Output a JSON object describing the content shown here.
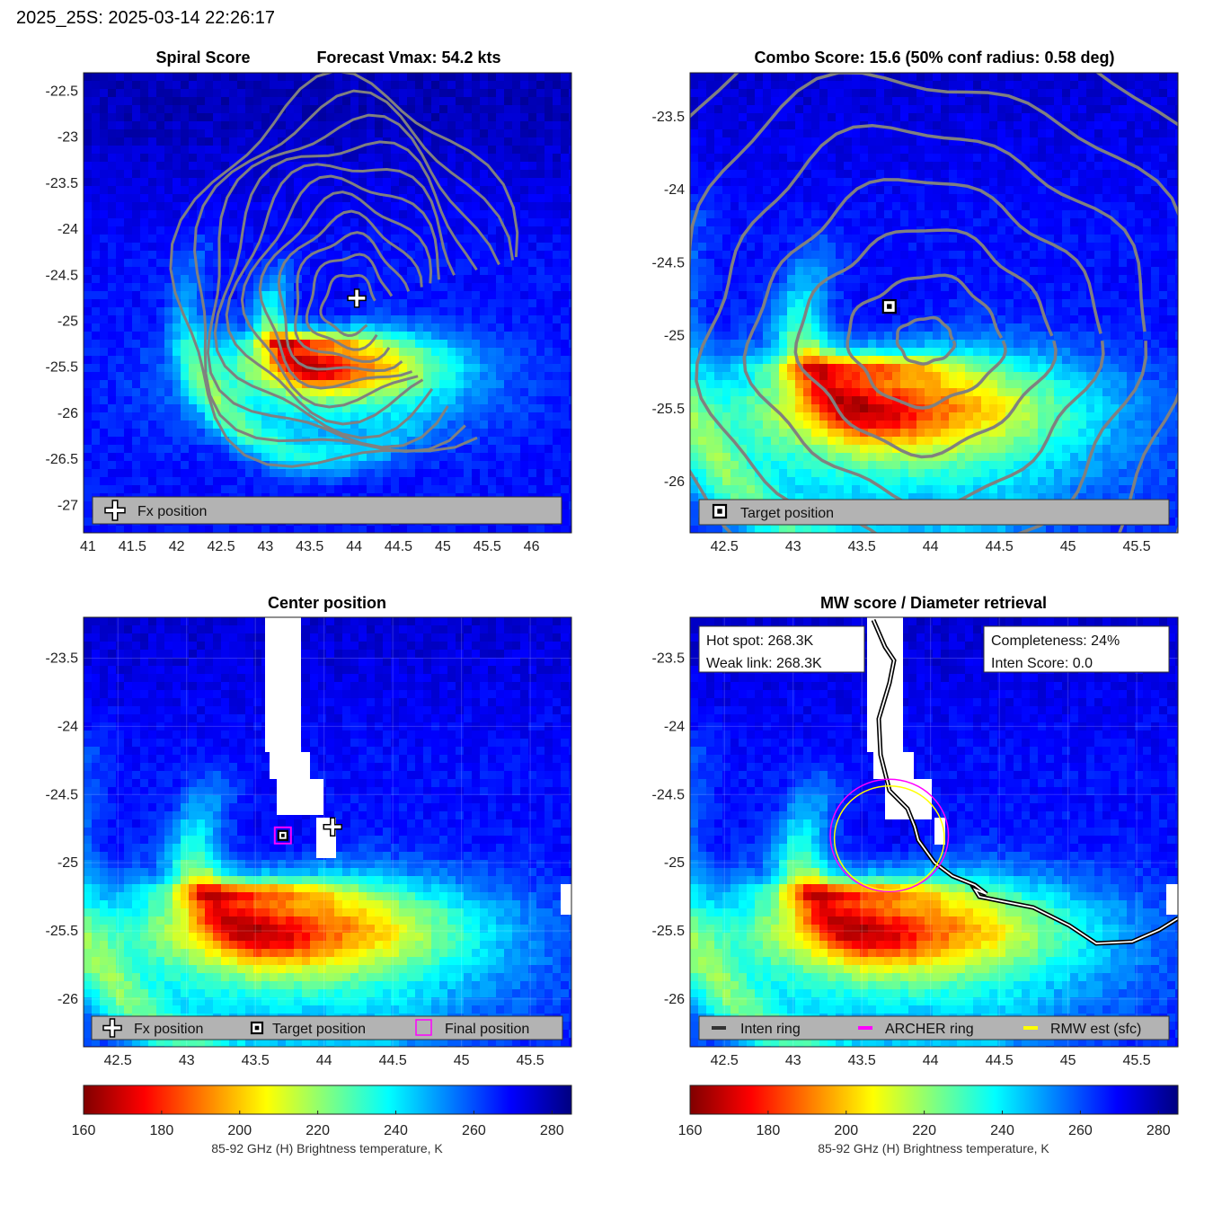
{
  "header": {
    "title": "2025_25S: 2025-03-14 22:26:17"
  },
  "colors": {
    "contour": "#808080",
    "inten_ring": "#333333",
    "archer_ring": "#ff00ff",
    "rmw_ring": "#ffff00",
    "legend_bg": "#b3b3b3"
  },
  "colormap": [
    "#800000",
    "#ff0000",
    "#ff8000",
    "#ffff00",
    "#80ff80",
    "#00ffff",
    "#0080ff",
    "#0000ff",
    "#000080"
  ],
  "chart_data": [
    {
      "type": "heatmap",
      "title_left": "Spiral Score",
      "title_right": "Forecast Vmax: 54.2 kts",
      "xlim": [
        40.95,
        46.45
      ],
      "ylim": [
        -27.3,
        -22.3
      ],
      "xticks": [
        41,
        41.5,
        42,
        42.5,
        43,
        43.5,
        44,
        44.5,
        45,
        45.5,
        46
      ],
      "xtick_labels": [
        "41",
        "41.5",
        "42",
        "42.5",
        "43",
        "43.5",
        "44",
        "44.5",
        "45",
        "45.5",
        "46"
      ],
      "yticks": [
        -22.5,
        -23,
        -23.5,
        -24,
        -24.5,
        -25,
        -25.5,
        -26,
        -26.5,
        -27
      ],
      "ytick_labels": [
        "-22.5",
        "-23",
        "-23.5",
        "-24",
        "-24.5",
        "-25",
        "-25.5",
        "-26",
        "-26.5",
        "-27"
      ],
      "markers": [
        {
          "kind": "plus",
          "x": 44.03,
          "y": -24.75,
          "label": "Fx position"
        }
      ],
      "legend": [
        "Fx position"
      ],
      "legend_location": "bottom",
      "contours": "spiral",
      "center": [
        43.95,
        -25.2
      ]
    },
    {
      "type": "heatmap",
      "title": "Combo Score: 15.6  (50% conf radius: 0.58 deg)",
      "xlim": [
        42.25,
        45.8
      ],
      "ylim": [
        -26.35,
        -23.2
      ],
      "xticks": [
        42.5,
        43,
        43.5,
        44,
        44.5,
        45,
        45.5
      ],
      "xtick_labels": [
        "42.5",
        "43",
        "43.5",
        "44",
        "44.5",
        "45",
        "45.5"
      ],
      "yticks": [
        -23.5,
        -24,
        -24.5,
        -25,
        -25.5,
        -26
      ],
      "ytick_labels": [
        "-23.5",
        "-24",
        "-24.5",
        "-25",
        "-25.5",
        "-26"
      ],
      "markers": [
        {
          "kind": "square",
          "x": 43.7,
          "y": -24.8,
          "label": "Target position"
        }
      ],
      "legend": [
        "Target position"
      ],
      "legend_location": "bottom",
      "contours": "combo",
      "center": [
        43.7,
        -24.85
      ]
    },
    {
      "type": "heatmap",
      "title": "Center position",
      "xlim": [
        42.25,
        45.8
      ],
      "ylim": [
        -26.35,
        -23.2
      ],
      "xticks": [
        42.5,
        43,
        43.5,
        44,
        44.5,
        45,
        45.5
      ],
      "xtick_labels": [
        "42.5",
        "43",
        "43.5",
        "44",
        "44.5",
        "45",
        "45.5"
      ],
      "yticks": [
        -23.5,
        -24,
        -24.5,
        -25,
        -25.5,
        -26
      ],
      "ytick_labels": [
        "-23.5",
        "-24",
        "-24.5",
        "-25",
        "-25.5",
        "-26"
      ],
      "markers": [
        {
          "kind": "plus",
          "x": 44.03,
          "y": -24.75,
          "label": "Fx position"
        },
        {
          "kind": "square",
          "x": 43.7,
          "y": -24.8,
          "label": "Target position"
        },
        {
          "kind": "magenta-square",
          "x": 43.7,
          "y": -24.8,
          "label": "Final position"
        }
      ],
      "legend": [
        "Fx position",
        "Target position",
        "Final position"
      ],
      "legend_location": "bottom",
      "grid": true
    },
    {
      "type": "heatmap",
      "title": "MW score / Diameter retrieval",
      "xlim": [
        42.25,
        45.8
      ],
      "ylim": [
        -26.35,
        -23.2
      ],
      "xticks": [
        42.5,
        43,
        43.5,
        44,
        44.5,
        45,
        45.5
      ],
      "xtick_labels": [
        "42.5",
        "43",
        "43.5",
        "44",
        "44.5",
        "45",
        "45.5"
      ],
      "yticks": [
        -23.5,
        -24,
        -24.5,
        -25,
        -25.5,
        -26
      ],
      "ytick_labels": [
        "-23.5",
        "-24",
        "-24.5",
        "-25",
        "-25.5",
        "-26"
      ],
      "info_left": [
        "Hot spot: 268.3K",
        "Weak link: 268.3K"
      ],
      "info_right": [
        "Completeness: 24%",
        "Inten Score: 0.0"
      ],
      "rings": [
        {
          "name": "Inten ring",
          "color": "#333333"
        },
        {
          "name": "ARCHER ring",
          "color": "#ff00ff",
          "x": 43.7,
          "y": -24.8,
          "r": 0.43
        },
        {
          "name": "RMW est (sfc)",
          "color": "#ffff00",
          "x": 43.7,
          "y": -24.82,
          "r": 0.4
        }
      ],
      "legend": [
        "Inten ring",
        "ARCHER ring",
        "RMW est (sfc)"
      ],
      "legend_location": "bottom",
      "grid": true
    }
  ],
  "colorbars": [
    {
      "range": [
        160,
        285
      ],
      "ticks": [
        160,
        180,
        200,
        220,
        240,
        260,
        280
      ],
      "tick_labels": [
        "160",
        "180",
        "200",
        "220",
        "240",
        "260",
        "280"
      ],
      "label": "85-92 GHz (H) Brightness temperature, K"
    },
    {
      "range": [
        160,
        285
      ],
      "ticks": [
        160,
        180,
        200,
        220,
        240,
        260,
        280
      ],
      "tick_labels": [
        "160",
        "180",
        "200",
        "220",
        "240",
        "260",
        "280"
      ],
      "label": "85-92 GHz (H) Brightness temperature, K"
    }
  ]
}
